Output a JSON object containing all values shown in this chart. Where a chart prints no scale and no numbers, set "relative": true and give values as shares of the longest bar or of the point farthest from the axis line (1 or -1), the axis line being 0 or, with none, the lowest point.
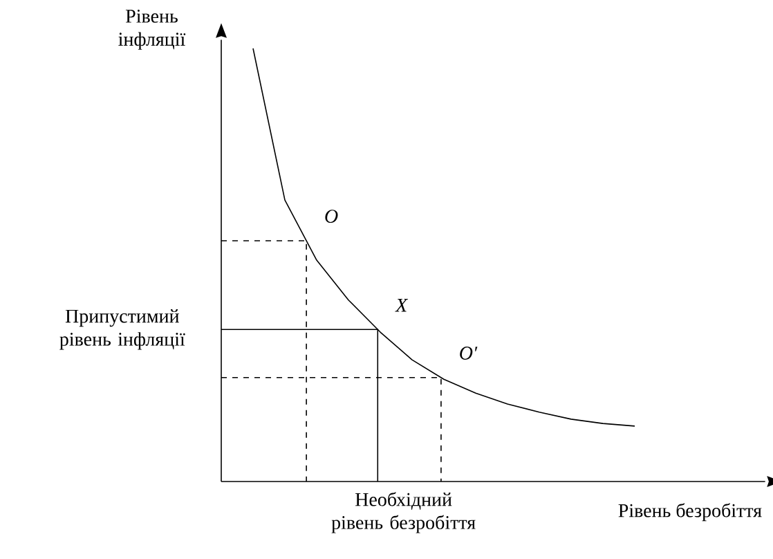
{
  "chart_data": {
    "type": "line",
    "relative": true,
    "xlabel": "Рівень безробіття",
    "ylabel": "Рівень інфляції",
    "categories": [
      null,
      null,
      null,
      null,
      null,
      null,
      null,
      null,
      null,
      null,
      null,
      null,
      null,
      null
    ],
    "series": [
      {
        "color": "#000000",
        "values": [
          null,
          1,
          0.65,
          0.511,
          0.419,
          0.345,
          0.281,
          0.236,
          0.204,
          0.179,
          0.16,
          0.144,
          0.134,
          0.128
        ]
      }
    ],
    "ref_lines": [
      {
        "axis": "y",
        "value": 0.556,
        "line_style": "dashed"
      },
      {
        "axis": "y",
        "value": 0.351,
        "line_style": "solid",
        "label": "Припустимий рівень інфляції"
      },
      {
        "axis": "y",
        "value": 0.24,
        "line_style": "dashed"
      }
    ],
    "annotations": [
      "O",
      "X",
      "O′",
      "Необхідний рівень безробіття"
    ]
  }
}
